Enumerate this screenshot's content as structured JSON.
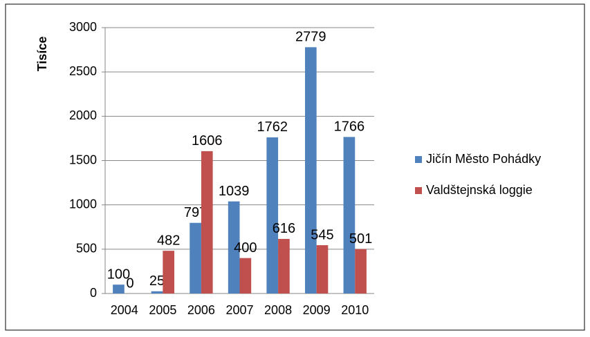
{
  "chart_data": {
    "type": "bar",
    "y_label": "Tisíce",
    "categories": [
      "2004",
      "2005",
      "2006",
      "2007",
      "2008",
      "2009",
      "2010"
    ],
    "series": [
      {
        "name": "Jičín Město Pohádky",
        "color": "#4f81bd",
        "values": [
          100,
          25,
          797,
          1039,
          1762,
          2779,
          1766
        ]
      },
      {
        "name": "Valdštejnská loggie",
        "color": "#c0504d",
        "values": [
          0,
          482,
          1606,
          400,
          616,
          545,
          501
        ]
      }
    ],
    "ylim": [
      0,
      3000
    ],
    "yticks": [
      0,
      500,
      1000,
      1500,
      2000,
      2500,
      3000
    ],
    "grid": true,
    "legend": "right"
  }
}
